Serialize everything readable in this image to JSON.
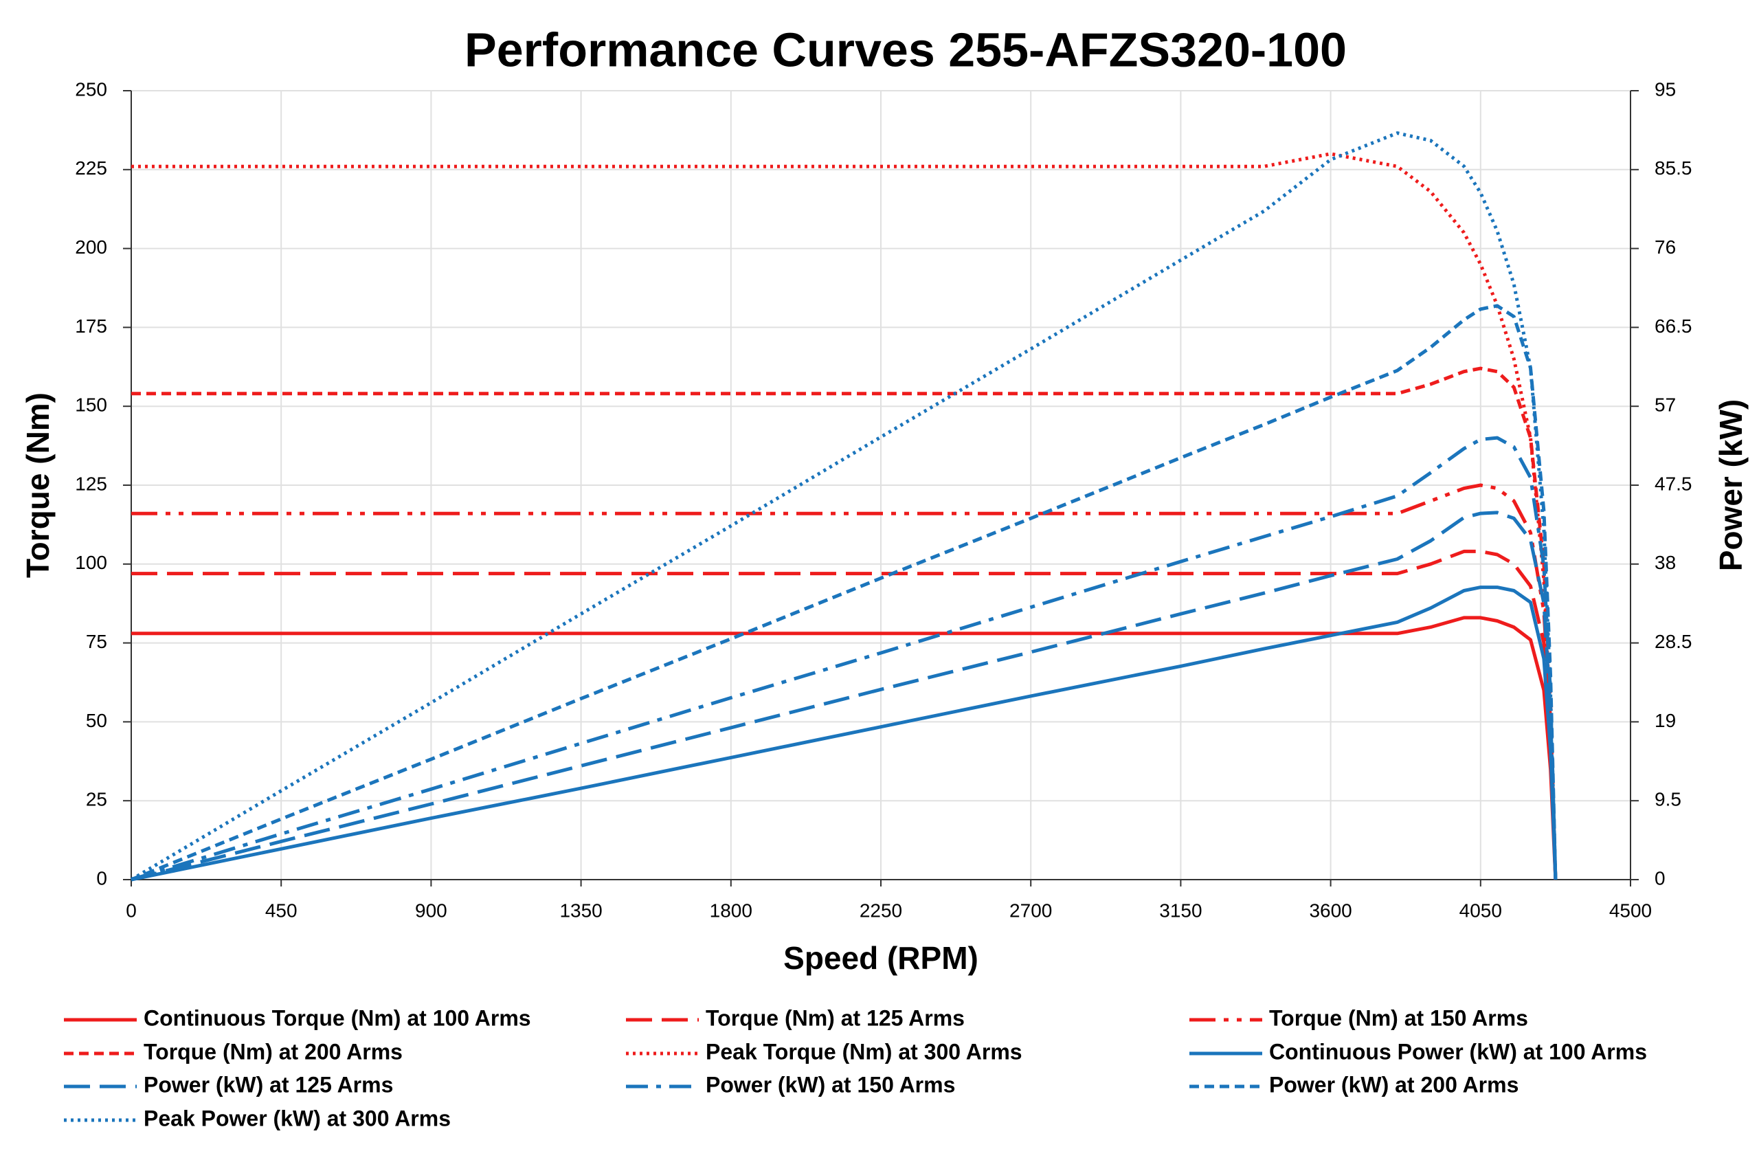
{
  "chart_data": {
    "type": "line",
    "title": "Performance Curves 255-AFZS320-100",
    "x_label": "Speed (RPM)",
    "y_label": "Torque (Nm)",
    "y2_label": "Power (kW)",
    "x": [
      0,
      450,
      900,
      1350,
      1800,
      2250,
      2700,
      3150,
      3400,
      3600,
      3800,
      3900,
      4000,
      4050,
      4100,
      4150,
      4200,
      4240,
      4260,
      4275
    ],
    "xlim": [
      0,
      4500
    ],
    "xticks": [
      0,
      450,
      900,
      1350,
      1800,
      2250,
      2700,
      3150,
      3600,
      4050,
      4500
    ],
    "ylim": [
      0,
      250
    ],
    "yticks": [
      0,
      25,
      50,
      75,
      100,
      125,
      150,
      175,
      200,
      225,
      250
    ],
    "y2lim": [
      0,
      95
    ],
    "y2ticks": [
      0,
      9.5,
      19,
      28.5,
      38,
      47.5,
      57,
      66.5,
      76,
      85.5,
      95
    ],
    "grid": true,
    "legend": "bottom",
    "series": [
      {
        "name": "Continuous Torque (Nm) at 100 Arms",
        "color": "#ee1c1c",
        "dash": "solid",
        "axis": "y",
        "values": [
          78,
          78,
          78,
          78,
          78,
          78,
          78,
          78,
          78,
          78,
          78,
          80,
          83,
          83,
          82,
          80,
          76,
          60,
          35,
          0
        ]
      },
      {
        "name": "Torque (Nm) at 125 Arms",
        "color": "#ee1c1c",
        "dash": "long-dash",
        "axis": "y",
        "values": [
          97,
          97,
          97,
          97,
          97,
          97,
          97,
          97,
          97,
          97,
          97,
          100,
          104,
          104,
          103,
          100,
          93,
          75,
          45,
          0
        ]
      },
      {
        "name": "Torque (Nm) at 150 Arms",
        "color": "#ee1c1c",
        "dash": "dash-dot-dot",
        "axis": "y",
        "values": [
          116,
          116,
          116,
          116,
          116,
          116,
          116,
          116,
          116,
          116,
          116,
          120,
          124,
          125,
          124,
          120,
          110,
          85,
          50,
          0
        ]
      },
      {
        "name": "Torque (Nm) at 200 Arms",
        "color": "#ee1c1c",
        "dash": "short-dash",
        "axis": "y",
        "values": [
          154,
          154,
          154,
          154,
          154,
          154,
          154,
          154,
          154,
          154,
          154,
          157,
          161,
          162,
          161,
          156,
          140,
          100,
          55,
          0
        ]
      },
      {
        "name": "Peak Torque (Nm) at 300 Arms",
        "color": "#ee1c1c",
        "dash": "dot",
        "axis": "y",
        "values": [
          226,
          226,
          226,
          226,
          226,
          226,
          226,
          226,
          226,
          230,
          226,
          218,
          205,
          195,
          182,
          165,
          140,
          95,
          50,
          0
        ]
      },
      {
        "name": "Continuous Power (kW) at 100 Arms",
        "color": "#1b75bc",
        "dash": "solid",
        "axis": "y2",
        "values": [
          0,
          3.7,
          7.4,
          11.0,
          14.7,
          18.4,
          22.1,
          25.7,
          27.8,
          29.4,
          31.0,
          32.7,
          34.8,
          35.2,
          35.2,
          34.8,
          33.4,
          26.6,
          15.6,
          0
        ]
      },
      {
        "name": "Power (kW) at 125 Arms",
        "color": "#1b75bc",
        "dash": "long-dash",
        "axis": "y2",
        "values": [
          0,
          4.6,
          9.1,
          13.7,
          18.3,
          22.9,
          27.4,
          32.0,
          34.5,
          36.6,
          38.6,
          40.8,
          43.6,
          44.1,
          44.2,
          43.5,
          40.9,
          33.3,
          20.1,
          0
        ]
      },
      {
        "name": "Power (kW) at 150 Arms",
        "color": "#1b75bc",
        "dash": "dash-dot",
        "axis": "y2",
        "values": [
          0,
          5.5,
          10.9,
          16.4,
          21.9,
          27.3,
          32.8,
          38.3,
          41.3,
          43.7,
          46.2,
          49.0,
          51.9,
          53.0,
          53.2,
          52.1,
          48.4,
          37.7,
          22.3,
          0
        ]
      },
      {
        "name": "Power (kW) at 200 Arms",
        "color": "#1b75bc",
        "dash": "short-dash",
        "axis": "y2",
        "values": [
          0,
          7.3,
          14.5,
          21.8,
          29.0,
          36.3,
          43.5,
          50.8,
          54.8,
          58.1,
          61.3,
          64.1,
          67.4,
          68.7,
          69.1,
          67.8,
          61.6,
          44.4,
          24.5,
          0
        ]
      },
      {
        "name": "Peak Power (kW) at 300 Arms",
        "color": "#1b75bc",
        "dash": "dot",
        "axis": "y2",
        "values": [
          0,
          10.7,
          21.3,
          32.0,
          42.6,
          53.3,
          63.9,
          74.6,
          80.5,
          86.7,
          89.9,
          89.0,
          85.9,
          82.7,
          78.1,
          71.7,
          61.6,
          42.2,
          22.3,
          0
        ]
      }
    ]
  }
}
